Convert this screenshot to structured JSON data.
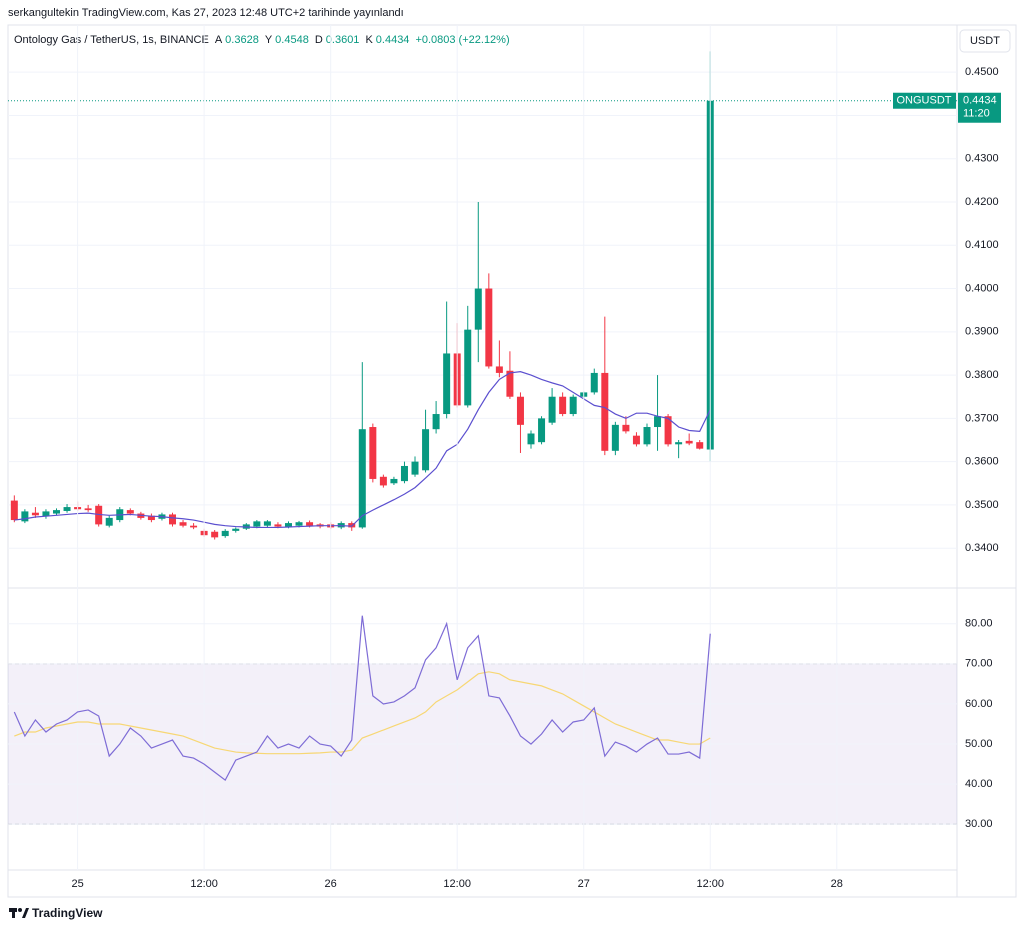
{
  "header": {
    "publisher": "serkangultekin TradingView.com, Kas 27, 2023 12:48 UTC+2 tarihinde yayınlandı",
    "footer": "TradingView",
    "currency_button": "USDT"
  },
  "chart_data": [
    {
      "type": "candlestick",
      "title": "Ontology Gas / TetherUS, 1s, BINANCE",
      "ohlc_labels": {
        "open": "A",
        "high": "Y",
        "low": "D",
        "close": "K"
      },
      "change_label": "+0.0803 (+22.12%)",
      "symbol": "ONGUSDT",
      "countdown": "11:20",
      "up_color": "#089981",
      "down_color": "#f23645",
      "x": [
        0,
        1,
        2,
        3,
        4,
        5,
        6,
        7,
        8,
        9,
        10,
        11,
        12,
        13,
        14,
        15,
        16,
        17,
        18,
        19,
        20,
        21,
        22,
        23,
        24,
        25,
        26,
        27,
        28,
        29,
        30,
        31,
        32,
        33,
        34,
        35,
        36,
        37,
        38,
        39,
        40,
        41,
        42,
        43,
        44,
        45,
        46,
        47,
        48,
        49,
        50,
        51,
        52,
        53,
        54,
        55,
        56,
        57,
        58,
        59,
        60,
        61,
        62,
        63,
        64,
        65,
        66
      ],
      "open": [
        0.351,
        0.3462,
        0.3482,
        0.3474,
        0.348,
        0.3486,
        0.3495,
        0.3492,
        0.3498,
        0.3452,
        0.3465,
        0.3488,
        0.348,
        0.3475,
        0.3468,
        0.3478,
        0.346,
        0.3452,
        0.344,
        0.3438,
        0.3428,
        0.344,
        0.3445,
        0.345,
        0.3452,
        0.3455,
        0.345,
        0.3452,
        0.346,
        0.3455,
        0.3455,
        0.3448,
        0.3458,
        0.3448,
        0.368,
        0.3565,
        0.355,
        0.3555,
        0.357,
        0.358,
        0.3675,
        0.371,
        0.385,
        0.373,
        0.3905,
        0.4,
        0.382,
        0.381,
        0.375,
        0.364,
        0.3645,
        0.369,
        0.375,
        0.371,
        0.375,
        0.376,
        0.3805,
        0.3625,
        0.3685,
        0.366,
        0.364,
        0.368,
        0.3705,
        0.364,
        0.3648,
        0.3645,
        0.3628
      ],
      "high": [
        0.3522,
        0.349,
        0.3495,
        0.349,
        0.3492,
        0.3502,
        0.3508,
        0.35,
        0.3502,
        0.3475,
        0.3495,
        0.3492,
        0.3484,
        0.348,
        0.3482,
        0.3482,
        0.3465,
        0.3458,
        0.3445,
        0.3442,
        0.3444,
        0.3448,
        0.3458,
        0.3465,
        0.3465,
        0.346,
        0.3462,
        0.3463,
        0.3464,
        0.3458,
        0.346,
        0.3462,
        0.3462,
        0.383,
        0.3688,
        0.357,
        0.3565,
        0.36,
        0.3612,
        0.372,
        0.374,
        0.397,
        0.392,
        0.396,
        0.42,
        0.4035,
        0.388,
        0.3855,
        0.376,
        0.3672,
        0.3705,
        0.377,
        0.376,
        0.3755,
        0.3762,
        0.3815,
        0.3935,
        0.3692,
        0.3705,
        0.3668,
        0.3688,
        0.38,
        0.371,
        0.365,
        0.3665,
        0.365,
        0.4548
      ],
      "low": [
        0.346,
        0.3458,
        0.347,
        0.3468,
        0.3476,
        0.3482,
        0.3486,
        0.3484,
        0.345,
        0.3448,
        0.346,
        0.3476,
        0.3466,
        0.346,
        0.3464,
        0.345,
        0.3448,
        0.3444,
        0.3426,
        0.342,
        0.3424,
        0.3436,
        0.3442,
        0.3446,
        0.3448,
        0.3446,
        0.3446,
        0.3448,
        0.3448,
        0.3446,
        0.3444,
        0.3444,
        0.344,
        0.3445,
        0.3552,
        0.354,
        0.3546,
        0.355,
        0.3565,
        0.3575,
        0.3665,
        0.37,
        0.3725,
        0.3725,
        0.383,
        0.3815,
        0.3795,
        0.3745,
        0.362,
        0.363,
        0.364,
        0.3685,
        0.3705,
        0.3705,
        0.3745,
        0.3755,
        0.3615,
        0.3615,
        0.3665,
        0.3635,
        0.3635,
        0.3625,
        0.3635,
        0.3608,
        0.3638,
        0.3628,
        0.3601
      ],
      "close": [
        0.3465,
        0.3485,
        0.3476,
        0.3485,
        0.3488,
        0.3495,
        0.349,
        0.3488,
        0.3455,
        0.347,
        0.349,
        0.348,
        0.347,
        0.3465,
        0.3478,
        0.3455,
        0.3452,
        0.3448,
        0.343,
        0.3425,
        0.344,
        0.3445,
        0.3455,
        0.3462,
        0.3462,
        0.345,
        0.3458,
        0.346,
        0.3452,
        0.345,
        0.3448,
        0.3458,
        0.3448,
        0.3675,
        0.356,
        0.3545,
        0.356,
        0.359,
        0.36,
        0.3675,
        0.371,
        0.385,
        0.373,
        0.3905,
        0.4,
        0.382,
        0.3805,
        0.375,
        0.3685,
        0.3665,
        0.37,
        0.375,
        0.371,
        0.375,
        0.376,
        0.3805,
        0.3625,
        0.3685,
        0.367,
        0.364,
        0.368,
        0.3705,
        0.364,
        0.3645,
        0.3642,
        0.363,
        0.4434
      ],
      "ma": {
        "color": "#5b4fcf",
        "values": [
          0.3465,
          0.3468,
          0.3472,
          0.3474,
          0.3476,
          0.3478,
          0.348,
          0.3481,
          0.3478,
          0.3476,
          0.3477,
          0.3478,
          0.3476,
          0.3474,
          0.3473,
          0.347,
          0.3468,
          0.3465,
          0.346,
          0.3455,
          0.3452,
          0.345,
          0.3449,
          0.3448,
          0.3448,
          0.3448,
          0.3449,
          0.345,
          0.3451,
          0.3452,
          0.3452,
          0.3452,
          0.3451,
          0.3475,
          0.3488,
          0.35,
          0.3512,
          0.3525,
          0.354,
          0.3562,
          0.3585,
          0.3625,
          0.364,
          0.3675,
          0.372,
          0.376,
          0.379,
          0.3805,
          0.3808,
          0.38,
          0.379,
          0.3782,
          0.3775,
          0.376,
          0.3745,
          0.373,
          0.3725,
          0.371,
          0.37,
          0.3712,
          0.3712,
          0.3705,
          0.37,
          0.368,
          0.3672,
          0.367,
          0.372
        ]
      },
      "xlim": [
        -0.6,
        89.4
      ],
      "ylim": [
        0.3308,
        0.4609
      ],
      "yticks": [
        {
          "value": 0.34,
          "label": "0.3400"
        },
        {
          "value": 0.35,
          "label": "0.3500"
        },
        {
          "value": 0.36,
          "label": "0.3600"
        },
        {
          "value": 0.37,
          "label": "0.3700"
        },
        {
          "value": 0.38,
          "label": "0.3800"
        },
        {
          "value": 0.39,
          "label": "0.3900"
        },
        {
          "value": 0.4,
          "label": "0.4000"
        },
        {
          "value": 0.41,
          "label": "0.4100"
        },
        {
          "value": 0.42,
          "label": "0.4200"
        },
        {
          "value": 0.43,
          "label": "0.4300"
        },
        {
          "value": 0.44,
          "label": "0.4400"
        },
        {
          "value": 0.45,
          "label": "0.4500"
        }
      ],
      "grid": true
    },
    {
      "type": "line",
      "x": [
        0,
        1,
        2,
        3,
        4,
        5,
        6,
        7,
        8,
        9,
        10,
        11,
        12,
        13,
        14,
        15,
        16,
        17,
        18,
        19,
        20,
        21,
        22,
        23,
        24,
        25,
        26,
        27,
        28,
        29,
        30,
        31,
        32,
        33,
        34,
        35,
        36,
        37,
        38,
        39,
        40,
        41,
        42,
        43,
        44,
        45,
        46,
        47,
        48,
        49,
        50,
        51,
        52,
        53,
        54,
        55,
        56,
        57,
        58,
        59,
        60,
        61,
        62,
        63,
        64,
        65,
        66
      ],
      "series": [
        {
          "color": "#7e6cd6",
          "values": [
            58,
            52,
            56,
            53,
            55,
            56,
            58,
            58.5,
            57,
            47,
            50,
            54,
            52,
            49,
            50,
            51,
            47,
            46.5,
            45,
            43,
            41,
            46,
            47,
            48,
            52,
            49,
            50,
            49,
            52,
            50,
            49.5,
            47,
            51,
            82,
            62,
            60,
            60.5,
            62,
            64,
            71,
            74,
            80,
            66,
            74,
            77,
            62,
            61.5,
            57,
            52,
            50,
            52.5,
            56,
            53,
            55.5,
            56,
            59,
            47,
            50.5,
            49.5,
            48,
            50,
            51.5,
            47.5,
            47.5,
            48,
            46.5,
            77.5
          ]
        },
        {
          "color": "#f7d774",
          "values": [
            52,
            53,
            53,
            54,
            54.5,
            55,
            55.5,
            55.5,
            55,
            55,
            55,
            54.5,
            54,
            53.5,
            53,
            52.5,
            52,
            51,
            50,
            49,
            48.5,
            48,
            47.8,
            47.7,
            47.6,
            47.6,
            47.6,
            47.6,
            47.7,
            47.8,
            48,
            48,
            48.5,
            51.5,
            52.5,
            53.5,
            54.5,
            55.5,
            56.5,
            58,
            60.5,
            62,
            63.5,
            65.5,
            67.5,
            68,
            67.5,
            66,
            65.5,
            65,
            64.5,
            63.5,
            62.5,
            61,
            59.5,
            58,
            56.5,
            55,
            54,
            53,
            52,
            51,
            51,
            50.5,
            50,
            50,
            51.5
          ]
        }
      ],
      "levels": [
        70,
        50,
        30
      ],
      "band_color": "#7e57c2",
      "xlim": [
        -0.6,
        89.4
      ],
      "ylim": [
        18.6,
        88.9
      ],
      "xticks": [
        {
          "value": 6,
          "label": "25"
        },
        {
          "value": 18,
          "label": "12:00"
        },
        {
          "value": 30,
          "label": "26"
        },
        {
          "value": 42,
          "label": "12:00"
        },
        {
          "value": 54,
          "label": "27"
        },
        {
          "value": 66,
          "label": "12:00"
        },
        {
          "value": 78,
          "label": "28"
        }
      ],
      "yticks": [
        {
          "value": 30,
          "label": "30.00"
        },
        {
          "value": 40,
          "label": "40.00"
        },
        {
          "value": 50,
          "label": "50.00"
        },
        {
          "value": 60,
          "label": "60.00"
        },
        {
          "value": 70,
          "label": "70.00"
        },
        {
          "value": 80,
          "label": "80.00"
        }
      ],
      "grid": true
    }
  ]
}
